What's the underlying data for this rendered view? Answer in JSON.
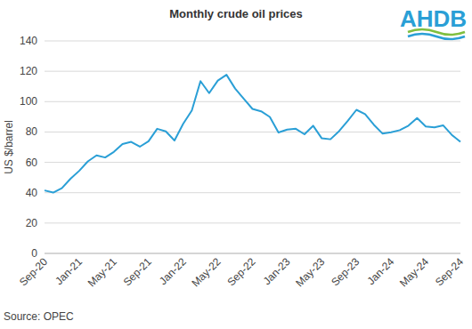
{
  "chart_data": {
    "type": "line",
    "title": "Monthly crude oil prices",
    "y_label": "US $/barrel",
    "source": "Source: OPEC",
    "logo": "AHDB",
    "color": "#2a9fd6",
    "grid": true,
    "categories": [
      "Sep-20",
      null,
      null,
      null,
      "Jan-21",
      null,
      null,
      null,
      "May-21",
      null,
      null,
      null,
      "Sep-21",
      null,
      null,
      null,
      "Jan-22",
      null,
      null,
      null,
      "May-22",
      null,
      null,
      null,
      "Sep-22",
      null,
      null,
      null,
      "Jan-23",
      null,
      null,
      null,
      "May-23",
      null,
      null,
      null,
      "Sep-23",
      null,
      null,
      null,
      "Jan-24",
      null,
      null,
      null,
      "May-24",
      null,
      null,
      null,
      "Sep-24"
    ],
    "values": [
      41.5,
      40.1,
      43.0,
      49.2,
      54.4,
      60.6,
      64.6,
      63.2,
      66.9,
      72.0,
      73.5,
      70.3,
      73.9,
      82.1,
      80.4,
      74.4,
      85.4,
      94.2,
      113.5,
      105.6,
      113.9,
      117.7,
      108.6,
      101.9,
      95.2,
      93.6,
      89.9,
      79.7,
      81.6,
      82.1,
      78.5,
      84.1,
      75.8,
      75.2,
      80.6,
      87.3,
      94.6,
      91.8,
      84.8,
      79.0,
      79.8,
      81.2,
      84.2,
      89.2,
      83.6,
      83.0,
      84.4,
      78.1,
      73.5
    ],
    "ylim": [
      0,
      140
    ],
    "yticks": [
      0,
      20,
      40,
      60,
      80,
      100,
      120,
      140
    ]
  }
}
